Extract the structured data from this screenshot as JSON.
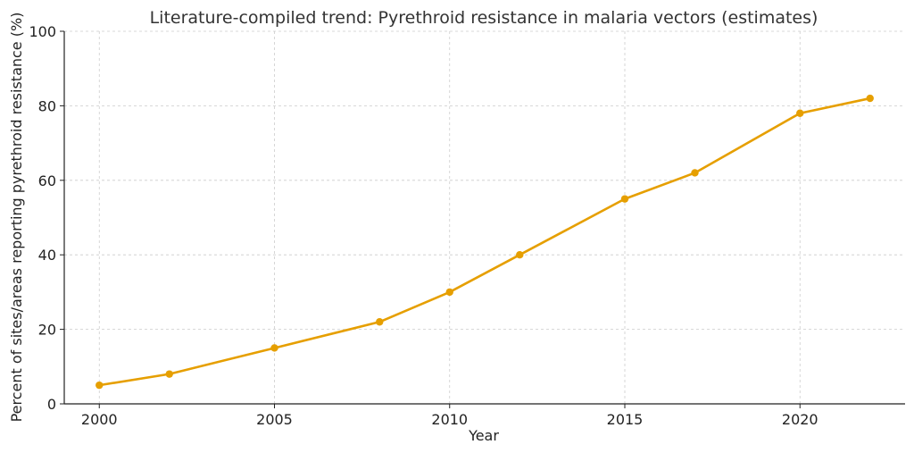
{
  "chart_data": {
    "type": "line",
    "title": "Literature-compiled trend: Pyrethroid resistance in malaria vectors (estimates)",
    "xlabel": "Year",
    "ylabel": "Percent of sites/areas reporting pyrethroid resistance (%)",
    "xlim": [
      1999,
      2023
    ],
    "ylim": [
      0,
      100
    ],
    "xticks": [
      2000,
      2005,
      2010,
      2015,
      2020
    ],
    "yticks": [
      0,
      20,
      40,
      60,
      80,
      100
    ],
    "grid": true,
    "color": "#E69F00",
    "series": [
      {
        "x": [
          2000,
          2002,
          2005,
          2008,
          2010,
          2012,
          2015,
          2017,
          2020,
          2022
        ],
        "y": [
          5,
          8,
          15,
          22,
          30,
          40,
          55,
          62,
          78,
          82
        ]
      }
    ]
  }
}
